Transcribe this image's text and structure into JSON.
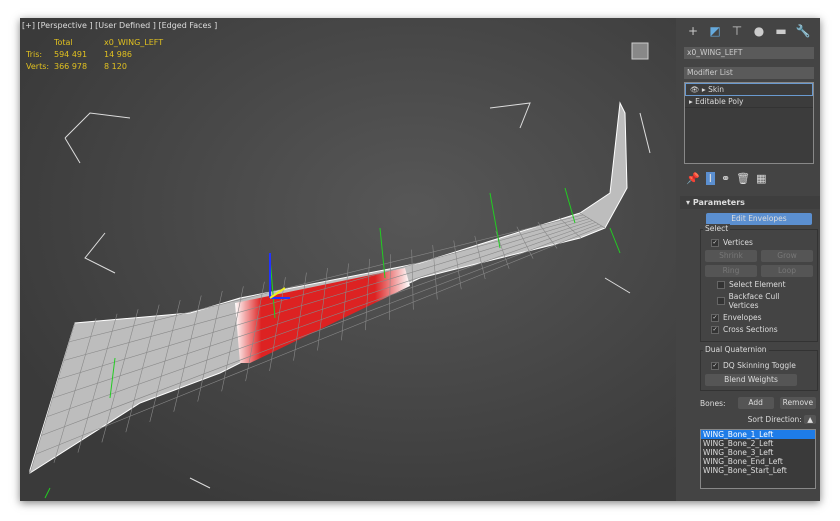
{
  "viewport": {
    "label": "[+] [Perspective ] [User Defined ] [Edged Faces ]",
    "stats": {
      "col_total": "Total",
      "col_object": "x0_WING_LEFT",
      "tris_label": "Tris:",
      "tris_total": "594 491",
      "tris_object": "14 986",
      "verts_label": "Verts:",
      "verts_total": "366 978",
      "verts_object": "8 120"
    }
  },
  "panel": {
    "tabs": [
      "create-icon",
      "modify-icon",
      "hierarchy-icon",
      "motion-icon",
      "display-icon",
      "utilities-icon"
    ],
    "object_name": "x0_WING_LEFT",
    "modifier_list": "Modifier List",
    "stack": [
      {
        "label": "Skin",
        "selected": true
      },
      {
        "label": "Editable Poly",
        "selected": false
      }
    ],
    "rollout": "Parameters",
    "edit_envelopes": "Edit Envelopes",
    "select": {
      "title": "Select",
      "vertices": "Vertices",
      "shrink": "Shrink",
      "grow": "Grow",
      "ring": "Ring",
      "loop": "Loop",
      "select_element": "Select Element",
      "backface": "Backface Cull Vertices",
      "envelopes": "Envelopes",
      "cross_sections": "Cross Sections"
    },
    "dq": {
      "title": "Dual Quaternion",
      "toggle": "DQ Skinning Toggle",
      "blend": "Blend Weights"
    },
    "bones_label": "Bones:",
    "add": "Add",
    "remove": "Remove",
    "sort": "Sort Direction:",
    "bones": [
      "WING_Bone_1_Left",
      "WING_Bone_2_Left",
      "WING_Bone_3_Left",
      "WING_Bone_End_Left",
      "WING_Bone_Start_Left"
    ],
    "selected_bone": 0,
    "accent": "#5b8fd0"
  }
}
